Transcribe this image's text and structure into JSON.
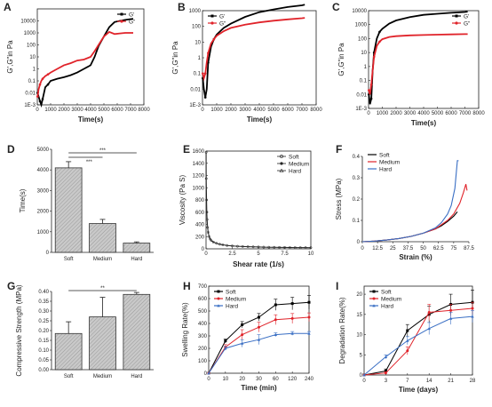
{
  "figure": {
    "panel_labels": [
      "A",
      "B",
      "C",
      "D",
      "E",
      "F",
      "G",
      "H",
      "I"
    ]
  },
  "chart_data": [
    {
      "id": "A",
      "type": "line",
      "xlabel": "Time(s)",
      "ylabel": "G',G\"in Pa",
      "xlim": [
        0,
        8000
      ],
      "ylim_exp": [
        -3,
        5
      ],
      "yscale": "log",
      "xticks": [
        "0",
        "1000",
        "2000",
        "3000",
        "4000",
        "5000",
        "6000",
        "7000",
        "8000"
      ],
      "yticks": [
        "1E-3",
        "0.01",
        "0.1",
        "1",
        "10",
        "100",
        "1000",
        "10000"
      ],
      "legend": [
        "G'",
        "G\""
      ],
      "legend_position": "top-right",
      "series": [
        {
          "name": "G'",
          "color": "#000000",
          "x": [
            20,
            100,
            200,
            300,
            400,
            600,
            800,
            1000,
            1500,
            2000,
            2500,
            3000,
            3500,
            3800,
            4000,
            4300,
            4600,
            5000,
            5400,
            5800,
            6200,
            6600,
            7000,
            7200
          ],
          "y": [
            0.01,
            0.005,
            0.002,
            0.001,
            0.003,
            0.03,
            0.05,
            0.1,
            0.15,
            0.2,
            0.3,
            0.5,
            1,
            1.5,
            2,
            10,
            80,
            500,
            3000,
            8000,
            10000,
            12000,
            14000,
            15000
          ]
        },
        {
          "name": "G\"",
          "color": "#e0232a",
          "x": [
            20,
            100,
            200,
            300,
            400,
            600,
            800,
            1000,
            1500,
            2000,
            2500,
            3000,
            3500,
            4000,
            4300,
            4600,
            5000,
            5400,
            5800,
            6200,
            6600,
            7000,
            7200
          ],
          "y": [
            0.005,
            0.02,
            0.05,
            0.1,
            0.15,
            0.25,
            0.35,
            0.5,
            1,
            2,
            3,
            5,
            6,
            10,
            30,
            100,
            500,
            1200,
            800,
            900,
            1000,
            1000,
            1000
          ]
        }
      ]
    },
    {
      "id": "B",
      "type": "line",
      "xlabel": "Time(s)",
      "ylabel": "G',G\"in Pa",
      "xlim": [
        0,
        8000
      ],
      "ylim_exp": [
        -3,
        3
      ],
      "yscale": "log",
      "xticks": [
        "0",
        "1000",
        "2000",
        "3000",
        "4000",
        "5000",
        "6000",
        "7000",
        "8000"
      ],
      "yticks": [
        "1E-3",
        "0.01",
        "0.1",
        "1",
        "10",
        "100",
        "1000"
      ],
      "legend": [
        "G'",
        "G\""
      ],
      "legend_position": "top-left",
      "series": [
        {
          "name": "G'",
          "color": "#000000",
          "x": [
            20,
            100,
            200,
            300,
            400,
            600,
            800,
            1000,
            1500,
            2000,
            3000,
            4000,
            5000,
            6000,
            7000,
            7200
          ],
          "y": [
            0.05,
            0.01,
            0.003,
            0.01,
            0.5,
            5,
            15,
            30,
            80,
            150,
            400,
            800,
            1200,
            1700,
            2200,
            2400
          ]
        },
        {
          "name": "G\"",
          "color": "#e0232a",
          "x": [
            20,
            100,
            200,
            300,
            400,
            600,
            800,
            1000,
            1500,
            2000,
            3000,
            4000,
            5000,
            6000,
            7000,
            7200
          ],
          "y": [
            0.1,
            0.05,
            0.1,
            0.5,
            2,
            8,
            15,
            25,
            50,
            80,
            130,
            180,
            230,
            280,
            330,
            350
          ]
        }
      ]
    },
    {
      "id": "C",
      "type": "line",
      "xlabel": "Time(s)",
      "ylabel": "G',G\"in Pa",
      "xlim": [
        0,
        8000
      ],
      "ylim_exp": [
        -3,
        4
      ],
      "yscale": "log",
      "xticks": [
        "0",
        "1000",
        "2000",
        "3000",
        "4000",
        "5000",
        "6000",
        "7000",
        "8000"
      ],
      "yticks": [
        "1E-3",
        "0.01",
        "0.1",
        "1",
        "10",
        "100",
        "1000",
        "10000"
      ],
      "legend": [
        "G'",
        "G\""
      ],
      "legend_position": "top-right",
      "series": [
        {
          "name": "G'",
          "color": "#000000",
          "x": [
            20,
            100,
            200,
            300,
            400,
            600,
            800,
            1000,
            1500,
            2000,
            3000,
            4000,
            5000,
            6000,
            7000,
            7200
          ],
          "y": [
            0.01,
            0.002,
            0.005,
            0.5,
            10,
            100,
            300,
            500,
            1200,
            2000,
            3500,
            5000,
            6000,
            7000,
            8000,
            8500
          ]
        },
        {
          "name": "G\"",
          "color": "#e0232a",
          "x": [
            20,
            100,
            200,
            300,
            400,
            600,
            800,
            1000,
            1500,
            2000,
            3000,
            4000,
            5000,
            6000,
            7000,
            7200
          ],
          "y": [
            0.02,
            0.01,
            0.05,
            0.5,
            5,
            30,
            60,
            90,
            130,
            150,
            170,
            180,
            190,
            200,
            210,
            210
          ]
        }
      ]
    },
    {
      "id": "D",
      "type": "bar",
      "ylabel": "Time(s)",
      "ylim": [
        0,
        5000
      ],
      "yticks": [
        "0",
        "1000",
        "2000",
        "3000",
        "4000",
        "5000"
      ],
      "categories": [
        "Soft",
        "Medium",
        "Hard"
      ],
      "values": [
        4100,
        1400,
        450
      ],
      "errors": [
        300,
        200,
        60
      ],
      "annotations": [
        "***",
        "***"
      ]
    },
    {
      "id": "E",
      "type": "scatter",
      "xlabel": "Shear rate (1/s)",
      "ylabel": "Viscosity (Pa S)",
      "xlim": [
        0,
        10
      ],
      "ylim": [
        0,
        1600
      ],
      "xticks": [
        "0",
        "2.5",
        "5",
        "7.5",
        "10"
      ],
      "yticks": [
        "0",
        "200",
        "400",
        "600",
        "800",
        "1000",
        "1200",
        "1400",
        "1600"
      ],
      "legend": [
        "Soft",
        "Medium",
        "Hard"
      ],
      "legend_position": "top-right",
      "series": [
        {
          "name": "Soft",
          "x": [
            0.01,
            0.02,
            0.05,
            0.08,
            0.1,
            0.15,
            0.2,
            0.3,
            0.4,
            0.5,
            0.7,
            1,
            1.3,
            1.6,
            2,
            2.5,
            3,
            3.5,
            4,
            4.5,
            5,
            5.5,
            6,
            6.5,
            7,
            7.5,
            8,
            8.5,
            9,
            9.5,
            10
          ],
          "y": [
            1580,
            1150,
            800,
            600,
            480,
            350,
            270,
            200,
            160,
            135,
            110,
            90,
            75,
            65,
            55,
            48,
            42,
            38,
            35,
            32,
            30,
            28,
            26,
            25,
            24,
            23,
            22,
            21,
            20,
            20,
            19
          ]
        }
      ]
    },
    {
      "id": "F",
      "type": "line",
      "xlabel": "Strain (%)",
      "ylabel": "Stress (MPa)",
      "xlim": [
        0,
        87.5
      ],
      "ylim": [
        0,
        0.4
      ],
      "xticks": [
        "0",
        "12.5",
        "25",
        "37.5",
        "50",
        "62.5",
        "75",
        "87.5"
      ],
      "yticks": [
        "0",
        "0.1",
        "0.2",
        "0.3",
        "0.4"
      ],
      "legend": [
        "Soft",
        "Medium",
        "Hard"
      ],
      "legend_position": "top-left",
      "series": [
        {
          "name": "Soft",
          "color": "#000000",
          "x": [
            0,
            10,
            20,
            30,
            40,
            50,
            60,
            65,
            70,
            75,
            78
          ],
          "y": [
            0,
            0.003,
            0.008,
            0.015,
            0.025,
            0.04,
            0.06,
            0.075,
            0.095,
            0.12,
            0.14
          ]
        },
        {
          "name": "Medium",
          "color": "#e0232a",
          "x": [
            0,
            10,
            20,
            30,
            40,
            50,
            60,
            70,
            75,
            80,
            83,
            85,
            86
          ],
          "y": [
            0,
            0.003,
            0.008,
            0.015,
            0.025,
            0.04,
            0.06,
            0.1,
            0.13,
            0.18,
            0.23,
            0.27,
            0.24
          ]
        },
        {
          "name": "Hard",
          "color": "#3a6fc4",
          "x": [
            0,
            10,
            20,
            30,
            40,
            50,
            60,
            65,
            70,
            73,
            76,
            78,
            79
          ],
          "y": [
            0,
            0.003,
            0.008,
            0.015,
            0.025,
            0.04,
            0.065,
            0.09,
            0.13,
            0.17,
            0.25,
            0.38,
            0.38
          ]
        }
      ]
    },
    {
      "id": "G",
      "type": "bar",
      "ylabel": "Compressive Strength (MPa)",
      "ylim": [
        0,
        0.4
      ],
      "yticks": [
        "0.00",
        "0.05",
        "0.10",
        "0.15",
        "0.20",
        "0.25",
        "0.30",
        "0.35",
        "0.40"
      ],
      "categories": [
        "Soft",
        "Medium",
        "Hard"
      ],
      "values": [
        0.185,
        0.27,
        0.385
      ],
      "errors": [
        0.06,
        0.1,
        0.01
      ],
      "annotations": [
        "**"
      ]
    },
    {
      "id": "H",
      "type": "line",
      "xlabel": "Time (min)",
      "ylabel": "Swelling Rate(%)",
      "xlim": [
        0,
        6
      ],
      "ylim": [
        0,
        700
      ],
      "xticks": [
        "0",
        "10",
        "20",
        "30",
        "60",
        "120",
        "240"
      ],
      "yticks": [
        "0",
        "100",
        "200",
        "300",
        "400",
        "500",
        "600",
        "700"
      ],
      "legend": [
        "Soft",
        "Medium",
        "Hard"
      ],
      "legend_position": "top-left",
      "series": [
        {
          "name": "Soft",
          "color": "#000000",
          "values": [
            0,
            260,
            390,
            450,
            550,
            560,
            570
          ],
          "errors": [
            0,
            15,
            25,
            30,
            45,
            50,
            55
          ]
        },
        {
          "name": "Medium",
          "color": "#e0232a",
          "values": [
            0,
            210,
            310,
            370,
            430,
            440,
            450
          ],
          "errors": [
            0,
            20,
            40,
            40,
            40,
            40,
            35
          ]
        },
        {
          "name": "Hard",
          "color": "#3a6fc4",
          "values": [
            0,
            200,
            240,
            270,
            310,
            320,
            320
          ],
          "errors": [
            0,
            15,
            30,
            40,
            15,
            15,
            15
          ]
        }
      ]
    },
    {
      "id": "I",
      "type": "line",
      "xlabel": "Time (days)",
      "ylabel": "Degradation Rate(%)",
      "xlim": [
        0,
        5
      ],
      "ylim": [
        0,
        22
      ],
      "xticks": [
        "0",
        "3",
        "7",
        "14",
        "21",
        "28"
      ],
      "yticks": [
        "0",
        "5",
        "10",
        "15",
        "20"
      ],
      "legend": [
        "Soft",
        "Medium",
        "Hard"
      ],
      "legend_position": "top-left",
      "series": [
        {
          "name": "Soft",
          "color": "#000000",
          "values": [
            0,
            1,
            11,
            15,
            17.5,
            18
          ],
          "errors": [
            0,
            0.5,
            1.5,
            2,
            2.5,
            3
          ]
        },
        {
          "name": "Medium",
          "color": "#e0232a",
          "values": [
            0,
            0.5,
            6,
            15.5,
            16,
            16.5
          ],
          "errors": [
            0,
            0.3,
            1,
            2,
            1.5,
            1.5
          ]
        },
        {
          "name": "Hard",
          "color": "#3a6fc4",
          "values": [
            0,
            4.5,
            8.5,
            11.5,
            14,
            14.5
          ],
          "errors": [
            0,
            0.5,
            1,
            1.5,
            1.5,
            1.5
          ]
        }
      ]
    }
  ]
}
